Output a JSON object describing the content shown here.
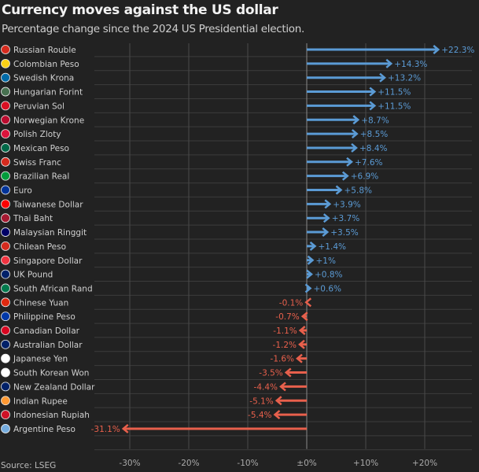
{
  "title": "Currency moves against the US dollar",
  "subtitle": "Percentage change since the 2024 US Presidential election.",
  "source": "Source: LSEG",
  "colors": {
    "positive": "#5b9bd5",
    "negative": "#e8604c",
    "background": "#222222",
    "grid": "#3c3c3c"
  },
  "chart_data": {
    "type": "bar",
    "orientation": "horizontal",
    "marker": "arrow",
    "xlim": [
      -36,
      28
    ],
    "xticks": [
      -30,
      -20,
      -10,
      0,
      10,
      20
    ],
    "xtick_labels": [
      "-30%",
      "-20%",
      "-10%",
      "±0%",
      "+10%",
      "+20%"
    ],
    "grid": true,
    "categories": [
      "Russian Rouble",
      "Colombian Peso",
      "Swedish Krona",
      "Hungarian Forint",
      "Peruvian Sol",
      "Norwegian Krone",
      "Polish Zloty",
      "Mexican Peso",
      "Swiss Franc",
      "Brazilian Real",
      "Euro",
      "Taiwanese Dollar",
      "Thai Baht",
      "Malaysian Ringgit",
      "Chilean Peso",
      "Singapore Dollar",
      "UK Pound",
      "South African Rand",
      "Chinese Yuan",
      "Philippine Peso",
      "Canadian Dollar",
      "Australian Dollar",
      "Japanese Yen",
      "South Korean Won",
      "New Zealand Dollar",
      "Indian Rupee",
      "Indonesian Rupiah",
      "Argentine Peso"
    ],
    "values": [
      22.3,
      14.3,
      13.2,
      11.5,
      11.5,
      8.7,
      8.5,
      8.4,
      7.6,
      6.9,
      5.8,
      3.9,
      3.7,
      3.5,
      1.4,
      1,
      0.8,
      0.6,
      -0.1,
      -0.7,
      -1.1,
      -1.2,
      -1.6,
      -3.5,
      -4.4,
      -5.1,
      -5.4,
      -31.1
    ],
    "data_labels": [
      "+22.3%",
      "+14.3%",
      "+13.2%",
      "+11.5%",
      "+11.5%",
      "+8.7%",
      "+8.5%",
      "+8.4%",
      "+7.6%",
      "+6.9%",
      "+5.8%",
      "+3.9%",
      "+3.7%",
      "+3.5%",
      "+1.4%",
      "+1%",
      "+0.8%",
      "+0.6%",
      "-0.1%",
      "-0.7%",
      "-1.1%",
      "-1.2%",
      "-1.6%",
      "-3.5%",
      "-4.4%",
      "-5.1%",
      "-5.4%",
      "-31.1%"
    ],
    "flag_icons": [
      "flag-russia",
      "flag-colombia",
      "flag-sweden",
      "flag-hungary",
      "flag-peru",
      "flag-norway",
      "flag-poland",
      "flag-mexico",
      "flag-switzerland",
      "flag-brazil",
      "flag-eu",
      "flag-taiwan",
      "flag-thailand",
      "flag-malaysia",
      "flag-chile",
      "flag-singapore",
      "flag-uk",
      "flag-south-africa",
      "flag-china",
      "flag-philippines",
      "flag-canada",
      "flag-australia",
      "flag-japan",
      "flag-south-korea",
      "flag-new-zealand",
      "flag-india",
      "flag-indonesia",
      "flag-argentina"
    ]
  }
}
